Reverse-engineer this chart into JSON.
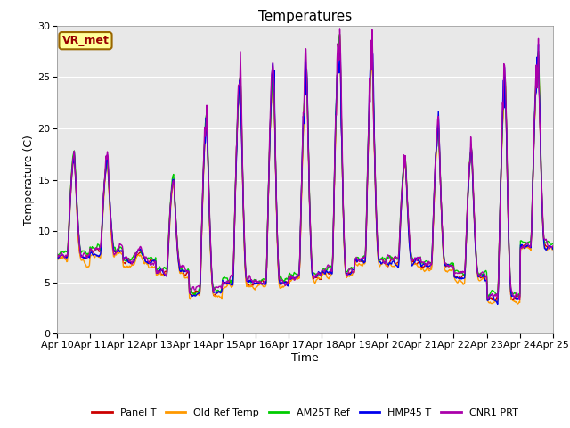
{
  "title": "Temperatures",
  "xlabel": "Time",
  "ylabel": "Temperature (C)",
  "annotation": "VR_met",
  "ylim": [
    0,
    30
  ],
  "yticks": [
    0,
    5,
    10,
    15,
    20,
    25,
    30
  ],
  "xtick_labels": [
    "Apr 10",
    "Apr 11",
    "Apr 12",
    "Apr 13",
    "Apr 14",
    "Apr 15",
    "Apr 16",
    "Apr 17",
    "Apr 18",
    "Apr 19",
    "Apr 20",
    "Apr 21",
    "Apr 22",
    "Apr 23",
    "Apr 24",
    "Apr 25"
  ],
  "series": [
    {
      "name": "Panel T",
      "color": "#cc0000"
    },
    {
      "name": "Old Ref Temp",
      "color": "#ff9900"
    },
    {
      "name": "AM25T Ref",
      "color": "#00cc00"
    },
    {
      "name": "HMP45 T",
      "color": "#0000ee"
    },
    {
      "name": "CNR1 PRT",
      "color": "#aa00aa"
    }
  ],
  "bg_color": "#e8e8e8",
  "annotation_bg": "#ffff99",
  "annotation_border": "#996600",
  "annotation_text_color": "#990000",
  "title_fontsize": 11,
  "axis_label_fontsize": 9,
  "tick_fontsize": 8,
  "legend_fontsize": 8,
  "linewidth": 1.0
}
